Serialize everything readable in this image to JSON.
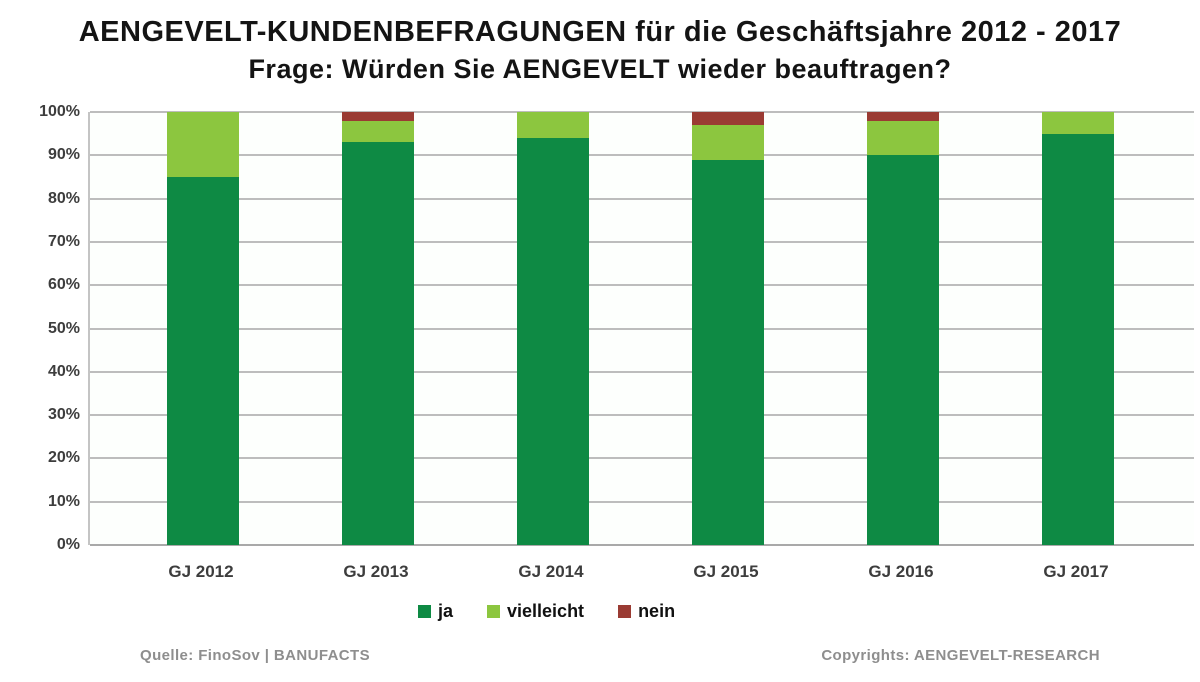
{
  "title": {
    "line1": "AENGEVELT-KUNDENBEFRAGUNGEN für die Geschäftsjahre 2012 - 2017",
    "line2": "Frage: Würden Sie AENGEVELT wieder beauftragen?"
  },
  "y_axis": {
    "labels": [
      "100%",
      "90%",
      "80%",
      "70%",
      "60%",
      "50%",
      "40%",
      "30%",
      "20%",
      "10%",
      "0%"
    ]
  },
  "footer": {
    "source": "Quelle: FinoSov | BANUFACTS",
    "copyright": "Copyrights: AENGEVELT-RESEARCH"
  },
  "colors": {
    "ja": "#0E8A44",
    "vielleicht": "#8CC63F",
    "nein": "#9A3B33",
    "gridline": "#BDBDBD",
    "axis_text": "#3D3D3D"
  },
  "chart_data": {
    "type": "bar",
    "stacked": true,
    "title": "AENGEVELT-KUNDENBEFRAGUNGEN für die Geschäftsjahre 2012 - 2017",
    "subtitle": "Frage: Würden Sie AENGEVELT wieder beauftragen?",
    "categories": [
      "GJ 2012",
      "GJ 2013",
      "GJ 2014",
      "GJ 2015",
      "GJ 2016",
      "GJ 2017"
    ],
    "series": [
      {
        "name": "ja",
        "color": "#0E8A44",
        "values": [
          85,
          93,
          94,
          89,
          90,
          95
        ]
      },
      {
        "name": "vielleicht",
        "color": "#8CC63F",
        "values": [
          15,
          5,
          6,
          8,
          8,
          5
        ]
      },
      {
        "name": "nein",
        "color": "#9A3B33",
        "values": [
          0,
          2,
          0,
          3,
          2,
          0
        ]
      }
    ],
    "xlabel": "",
    "ylabel": "",
    "ylim": [
      0,
      100
    ],
    "ytick_step": 10,
    "grid": true,
    "legend_position": "bottom"
  }
}
